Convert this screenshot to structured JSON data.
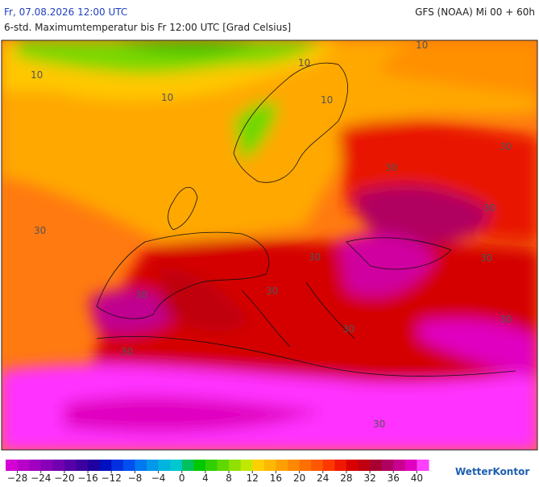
{
  "header": {
    "left": "Fr, 07.08.2026 12:00 UTC",
    "right": "GFS (NOAA) Mi 00 + 60h",
    "subtitle": "6-std. Maximumtemperatur bis Fr 12:00 UTC [Grad Celsius]"
  },
  "map": {
    "contour_labels": [
      "10",
      "10",
      "10",
      "10",
      "10",
      "30",
      "30",
      "30",
      "30",
      "30",
      "30",
      "30",
      "30",
      "30",
      "30",
      "30",
      "30"
    ]
  },
  "legend": {
    "range": [
      -30,
      42
    ],
    "colors": [
      "#d400d4",
      "#b800c8",
      "#a000c0",
      "#8800b8",
      "#7000b0",
      "#5800a8",
      "#3c00a0",
      "#2000a0",
      "#0010c0",
      "#0030e0",
      "#0050f0",
      "#0078f0",
      "#0098e8",
      "#00b4e0",
      "#00c8d0",
      "#00c060",
      "#00c800",
      "#30d000",
      "#60d800",
      "#90e000",
      "#c0e800",
      "#ffd000",
      "#ffb800",
      "#ffa000",
      "#ff8800",
      "#ff7000",
      "#ff5800",
      "#ff3800",
      "#f01800",
      "#d80000",
      "#c00010",
      "#a80030",
      "#b00060",
      "#c80090",
      "#e000c0",
      "#ff40ff"
    ],
    "ticks": [
      {
        "value": -28,
        "label": "−28"
      },
      {
        "value": -24,
        "label": "−24"
      },
      {
        "value": -20,
        "label": "−20"
      },
      {
        "value": -16,
        "label": "−16"
      },
      {
        "value": -12,
        "label": "−12"
      },
      {
        "value": -8,
        "label": "−8"
      },
      {
        "value": -4,
        "label": "−4"
      },
      0,
      4,
      8,
      12,
      16,
      20,
      24,
      28,
      32,
      36,
      40
    ]
  },
  "brand": "WetterKontor"
}
